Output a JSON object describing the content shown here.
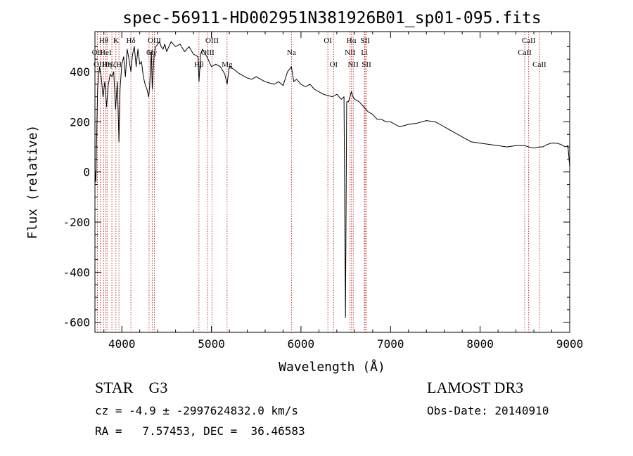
{
  "chart_data": {
    "type": "line",
    "title": "spec-56911-HD002951N381926B01_sp01-095.fits",
    "xlabel": "Wavelength (Å)",
    "ylabel": "Flux (relative)",
    "xlim": [
      3700,
      9000
    ],
    "ylim": [
      -640,
      560
    ],
    "xticks": [
      "4000",
      "5000",
      "6000",
      "7000",
      "8000",
      "9000"
    ],
    "yticks": [
      "-600",
      "-400",
      "-200",
      "0",
      "200",
      "400"
    ],
    "grid": false,
    "series": [
      {
        "x": [
          3700,
          3710,
          3720,
          3730,
          3750,
          3770,
          3790,
          3810,
          3830,
          3850,
          3870,
          3890,
          3910,
          3930,
          3950,
          3965,
          3968,
          3972,
          3980,
          4000,
          4020,
          4040,
          4060,
          4080,
          4101,
          4120,
          4140,
          4160,
          4180,
          4200,
          4220,
          4240,
          4260,
          4280,
          4300,
          4310,
          4330,
          4340,
          4360,
          4380,
          4400,
          4420,
          4440,
          4460,
          4480,
          4500,
          4550,
          4600,
          4650,
          4700,
          4750,
          4800,
          4850,
          4861,
          4880,
          4900,
          4950,
          5000,
          5050,
          5100,
          5150,
          5175,
          5200,
          5250,
          5300,
          5350,
          5400,
          5450,
          5500,
          5550,
          5600,
          5650,
          5700,
          5750,
          5800,
          5850,
          5893,
          5920,
          5950,
          6000,
          6050,
          6100,
          6150,
          6200,
          6250,
          6300,
          6350,
          6400,
          6450,
          6480,
          6497,
          6510,
          6530,
          6563,
          6580,
          6600,
          6650,
          6700,
          6750,
          6800,
          6850,
          6900,
          6950,
          7000,
          7100,
          7200,
          7300,
          7400,
          7500,
          7600,
          7700,
          7800,
          7900,
          8000,
          8100,
          8200,
          8300,
          8400,
          8500,
          8542,
          8600,
          8662,
          8700,
          8750,
          8800,
          8850,
          8900,
          8950,
          8980,
          9000
        ],
        "values": [
          10,
          -40,
          150,
          330,
          420,
          380,
          300,
          360,
          260,
          350,
          390,
          380,
          400,
          250,
          360,
          160,
          120,
          180,
          330,
          430,
          460,
          380,
          490,
          450,
          400,
          470,
          500,
          420,
          490,
          430,
          440,
          380,
          350,
          330,
          300,
          340,
          480,
          330,
          470,
          500,
          510,
          520,
          500,
          490,
          510,
          480,
          520,
          500,
          510,
          480,
          500,
          470,
          460,
          360,
          470,
          490,
          460,
          420,
          430,
          420,
          390,
          350,
          420,
          410,
          395,
          385,
          375,
          370,
          380,
          370,
          360,
          355,
          350,
          360,
          345,
          400,
          420,
          360,
          370,
          350,
          340,
          350,
          330,
          320,
          310,
          305,
          300,
          310,
          290,
          300,
          -580,
          280,
          280,
          320,
          300,
          290,
          280,
          260,
          240,
          230,
          210,
          210,
          200,
          200,
          180,
          190,
          195,
          205,
          200,
          180,
          160,
          140,
          120,
          115,
          110,
          105,
          100,
          105,
          105,
          100,
          95,
          100,
          100,
          110,
          115,
          115,
          110,
          100,
          105,
          20
        ]
      }
    ],
    "lines": [
      {
        "name": "Hθ",
        "x": 3798,
        "row": 1
      },
      {
        "name": "OII",
        "x": 3727,
        "row": 2
      },
      {
        "name": "OIII",
        "x": 3760,
        "row": 3
      },
      {
        "name": "HeI",
        "x": 3820,
        "row": 2
      },
      {
        "name": "Hη",
        "x": 3835,
        "row": 3
      },
      {
        "name": "Hζ",
        "x": 3889,
        "row": 3
      },
      {
        "name": "K",
        "x": 3934,
        "row": 1
      },
      {
        "name": "H",
        "x": 3968,
        "row": 3
      },
      {
        "name": "Hδ",
        "x": 4101,
        "row": 1
      },
      {
        "name": "G",
        "x": 4304,
        "row": 2
      },
      {
        "name": "Hγ",
        "x": 4340,
        "row": 2
      },
      {
        "name": "OIII",
        "x": 4363,
        "row": 1
      },
      {
        "name": "Hβ",
        "x": 4861,
        "row": 3
      },
      {
        "name": "OIII",
        "x": 4959,
        "row": 2
      },
      {
        "name": "OIII",
        "x": 5007,
        "row": 1
      },
      {
        "name": "Mg",
        "x": 5175,
        "row": 3
      },
      {
        "name": "Na",
        "x": 5893,
        "row": 2
      },
      {
        "name": "OI",
        "x": 6300,
        "row": 1
      },
      {
        "name": "OI",
        "x": 6364,
        "row": 3
      },
      {
        "name": "NII",
        "x": 6548,
        "row": 2
      },
      {
        "name": "Hα",
        "x": 6563,
        "row": 1
      },
      {
        "name": "NII",
        "x": 6583,
        "row": 3
      },
      {
        "name": "Li",
        "x": 6708,
        "row": 2
      },
      {
        "name": "SII",
        "x": 6716,
        "row": 1
      },
      {
        "name": "SII",
        "x": 6731,
        "row": 3
      },
      {
        "name": "CaII",
        "x": 8498,
        "row": 2
      },
      {
        "name": "CaII",
        "x": 8542,
        "row": 1
      },
      {
        "name": "CaII",
        "x": 8662,
        "row": 3
      }
    ]
  },
  "info": {
    "object": "STAR    G3",
    "survey": "LAMOST DR3",
    "cz": "cz = -4.9 ± -2997624832.0 km/s",
    "obs_date": "Obs-Date: 20140910",
    "coords": "RA =   7.57453, DEC =  36.46583"
  }
}
